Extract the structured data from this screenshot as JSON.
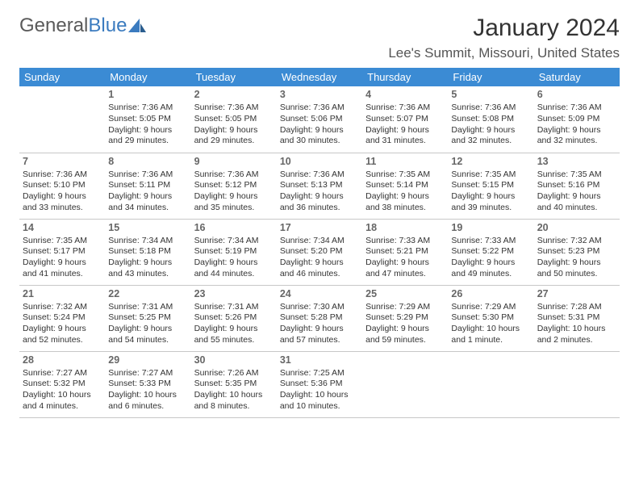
{
  "brand": {
    "part1": "General",
    "part2": "Blue"
  },
  "title": "January 2024",
  "location": "Lee's Summit, Missouri, United States",
  "colors": {
    "header_bg": "#3b8bd4",
    "header_fg": "#ffffff",
    "brand_gray": "#5a5a5a",
    "brand_blue": "#3b7bbf",
    "border": "#c8c8c8"
  },
  "day_headers": [
    "Sunday",
    "Monday",
    "Tuesday",
    "Wednesday",
    "Thursday",
    "Friday",
    "Saturday"
  ],
  "weeks": [
    [
      null,
      {
        "n": "1",
        "sr": "7:36 AM",
        "ss": "5:05 PM",
        "dl": "9 hours and 29 minutes."
      },
      {
        "n": "2",
        "sr": "7:36 AM",
        "ss": "5:05 PM",
        "dl": "9 hours and 29 minutes."
      },
      {
        "n": "3",
        "sr": "7:36 AM",
        "ss": "5:06 PM",
        "dl": "9 hours and 30 minutes."
      },
      {
        "n": "4",
        "sr": "7:36 AM",
        "ss": "5:07 PM",
        "dl": "9 hours and 31 minutes."
      },
      {
        "n": "5",
        "sr": "7:36 AM",
        "ss": "5:08 PM",
        "dl": "9 hours and 32 minutes."
      },
      {
        "n": "6",
        "sr": "7:36 AM",
        "ss": "5:09 PM",
        "dl": "9 hours and 32 minutes."
      }
    ],
    [
      {
        "n": "7",
        "sr": "7:36 AM",
        "ss": "5:10 PM",
        "dl": "9 hours and 33 minutes."
      },
      {
        "n": "8",
        "sr": "7:36 AM",
        "ss": "5:11 PM",
        "dl": "9 hours and 34 minutes."
      },
      {
        "n": "9",
        "sr": "7:36 AM",
        "ss": "5:12 PM",
        "dl": "9 hours and 35 minutes."
      },
      {
        "n": "10",
        "sr": "7:36 AM",
        "ss": "5:13 PM",
        "dl": "9 hours and 36 minutes."
      },
      {
        "n": "11",
        "sr": "7:35 AM",
        "ss": "5:14 PM",
        "dl": "9 hours and 38 minutes."
      },
      {
        "n": "12",
        "sr": "7:35 AM",
        "ss": "5:15 PM",
        "dl": "9 hours and 39 minutes."
      },
      {
        "n": "13",
        "sr": "7:35 AM",
        "ss": "5:16 PM",
        "dl": "9 hours and 40 minutes."
      }
    ],
    [
      {
        "n": "14",
        "sr": "7:35 AM",
        "ss": "5:17 PM",
        "dl": "9 hours and 41 minutes."
      },
      {
        "n": "15",
        "sr": "7:34 AM",
        "ss": "5:18 PM",
        "dl": "9 hours and 43 minutes."
      },
      {
        "n": "16",
        "sr": "7:34 AM",
        "ss": "5:19 PM",
        "dl": "9 hours and 44 minutes."
      },
      {
        "n": "17",
        "sr": "7:34 AM",
        "ss": "5:20 PM",
        "dl": "9 hours and 46 minutes."
      },
      {
        "n": "18",
        "sr": "7:33 AM",
        "ss": "5:21 PM",
        "dl": "9 hours and 47 minutes."
      },
      {
        "n": "19",
        "sr": "7:33 AM",
        "ss": "5:22 PM",
        "dl": "9 hours and 49 minutes."
      },
      {
        "n": "20",
        "sr": "7:32 AM",
        "ss": "5:23 PM",
        "dl": "9 hours and 50 minutes."
      }
    ],
    [
      {
        "n": "21",
        "sr": "7:32 AM",
        "ss": "5:24 PM",
        "dl": "9 hours and 52 minutes."
      },
      {
        "n": "22",
        "sr": "7:31 AM",
        "ss": "5:25 PM",
        "dl": "9 hours and 54 minutes."
      },
      {
        "n": "23",
        "sr": "7:31 AM",
        "ss": "5:26 PM",
        "dl": "9 hours and 55 minutes."
      },
      {
        "n": "24",
        "sr": "7:30 AM",
        "ss": "5:28 PM",
        "dl": "9 hours and 57 minutes."
      },
      {
        "n": "25",
        "sr": "7:29 AM",
        "ss": "5:29 PM",
        "dl": "9 hours and 59 minutes."
      },
      {
        "n": "26",
        "sr": "7:29 AM",
        "ss": "5:30 PM",
        "dl": "10 hours and 1 minute."
      },
      {
        "n": "27",
        "sr": "7:28 AM",
        "ss": "5:31 PM",
        "dl": "10 hours and 2 minutes."
      }
    ],
    [
      {
        "n": "28",
        "sr": "7:27 AM",
        "ss": "5:32 PM",
        "dl": "10 hours and 4 minutes."
      },
      {
        "n": "29",
        "sr": "7:27 AM",
        "ss": "5:33 PM",
        "dl": "10 hours and 6 minutes."
      },
      {
        "n": "30",
        "sr": "7:26 AM",
        "ss": "5:35 PM",
        "dl": "10 hours and 8 minutes."
      },
      {
        "n": "31",
        "sr": "7:25 AM",
        "ss": "5:36 PM",
        "dl": "10 hours and 10 minutes."
      },
      null,
      null,
      null
    ]
  ],
  "labels": {
    "sunrise": "Sunrise:",
    "sunset": "Sunset:",
    "daylight": "Daylight:"
  }
}
